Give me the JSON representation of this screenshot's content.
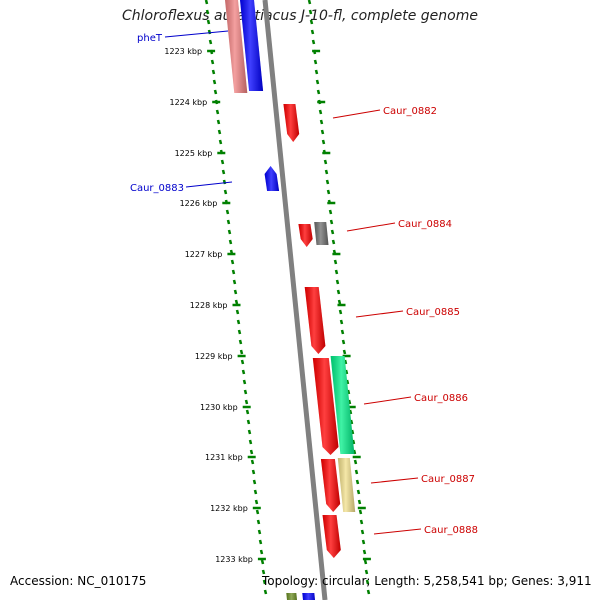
{
  "title": "Chloroflexus aurantiacus J-10-fl, complete genome",
  "footer": {
    "accession": "Accession: NC_010175",
    "topology": "Topology: circular; Length: 5,258,541 bp; Genes: 3,911"
  },
  "colors": {
    "backbone": "#808080",
    "tick": "#008000",
    "forward_label": "#cc0000",
    "reverse_label": "#0000cc",
    "gene_red": "#ff0000",
    "gene_blue": "#0000ff",
    "gene_pink": "#f08080",
    "gene_gray": "#6e6e6e",
    "gene_green": "#00ee88",
    "gene_yellow": "#f2e08c"
  },
  "ticks": [
    {
      "label": "1223 kbp"
    },
    {
      "label": "1224 kbp"
    },
    {
      "label": "1225 kbp"
    },
    {
      "label": "1226 kbp"
    },
    {
      "label": "1227 kbp"
    },
    {
      "label": "1228 kbp"
    },
    {
      "label": "1229 kbp"
    },
    {
      "label": "1230 kbp"
    },
    {
      "label": "1231 kbp"
    },
    {
      "label": "1232 kbp"
    },
    {
      "label": "1233 kbp"
    }
  ],
  "gene_labels": [
    {
      "text": "pheT",
      "strand": "reverse"
    },
    {
      "text": "Caur_0882",
      "strand": "forward"
    },
    {
      "text": "Caur_0883",
      "strand": "reverse"
    },
    {
      "text": "Caur_0884",
      "strand": "forward"
    },
    {
      "text": "Caur_0885",
      "strand": "forward"
    },
    {
      "text": "Caur_0886",
      "strand": "forward"
    },
    {
      "text": "Caur_0887",
      "strand": "forward"
    },
    {
      "text": "Caur_0888",
      "strand": "forward"
    }
  ]
}
